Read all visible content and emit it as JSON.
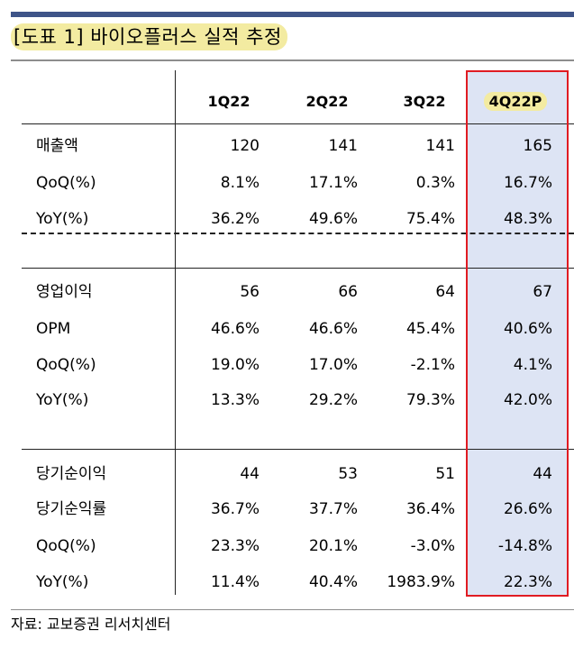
{
  "title": "[도표 1] 바이오플러스 실적 추정",
  "columns": [
    "1Q22",
    "2Q22",
    "3Q22",
    "4Q22P"
  ],
  "sections": [
    {
      "rows": [
        {
          "label": "매출액",
          "values": [
            "120",
            "141",
            "141",
            "165"
          ]
        },
        {
          "label": "QoQ(%)",
          "values": [
            "8.1%",
            "17.1%",
            "0.3%",
            "16.7%"
          ]
        },
        {
          "label": "YoY(%)",
          "values": [
            "36.2%",
            "49.6%",
            "75.4%",
            "48.3%"
          ]
        }
      ]
    },
    {
      "rows": [
        {
          "label": "영업이익",
          "values": [
            "56",
            "66",
            "64",
            "67"
          ]
        },
        {
          "label": "OPM",
          "values": [
            "46.6%",
            "46.6%",
            "45.4%",
            "40.6%"
          ]
        },
        {
          "label": "QoQ(%)",
          "values": [
            "19.0%",
            "17.0%",
            "-2.1%",
            "4.1%"
          ]
        },
        {
          "label": "YoY(%)",
          "values": [
            "13.3%",
            "29.2%",
            "79.3%",
            "42.0%"
          ]
        }
      ]
    },
    {
      "rows": [
        {
          "label": "당기순이익",
          "values": [
            "44",
            "53",
            "51",
            "44"
          ]
        },
        {
          "label": "당기순익률",
          "values": [
            "36.7%",
            "37.7%",
            "36.4%",
            "26.6%"
          ]
        },
        {
          "label": "QoQ(%)",
          "values": [
            "23.3%",
            "20.1%",
            "-3.0%",
            "-14.8%"
          ]
        },
        {
          "label": "YoY(%)",
          "values": [
            "11.4%",
            "40.4%",
            "1983.9%",
            "22.3%"
          ]
        }
      ]
    }
  ],
  "source": "자료: 교보증권 리서치센터",
  "colors": {
    "title_highlight": "#f3eba1",
    "top_rule": "#3e5488",
    "column_highlight": "#dde4f4",
    "border_red": "#e01b22"
  }
}
